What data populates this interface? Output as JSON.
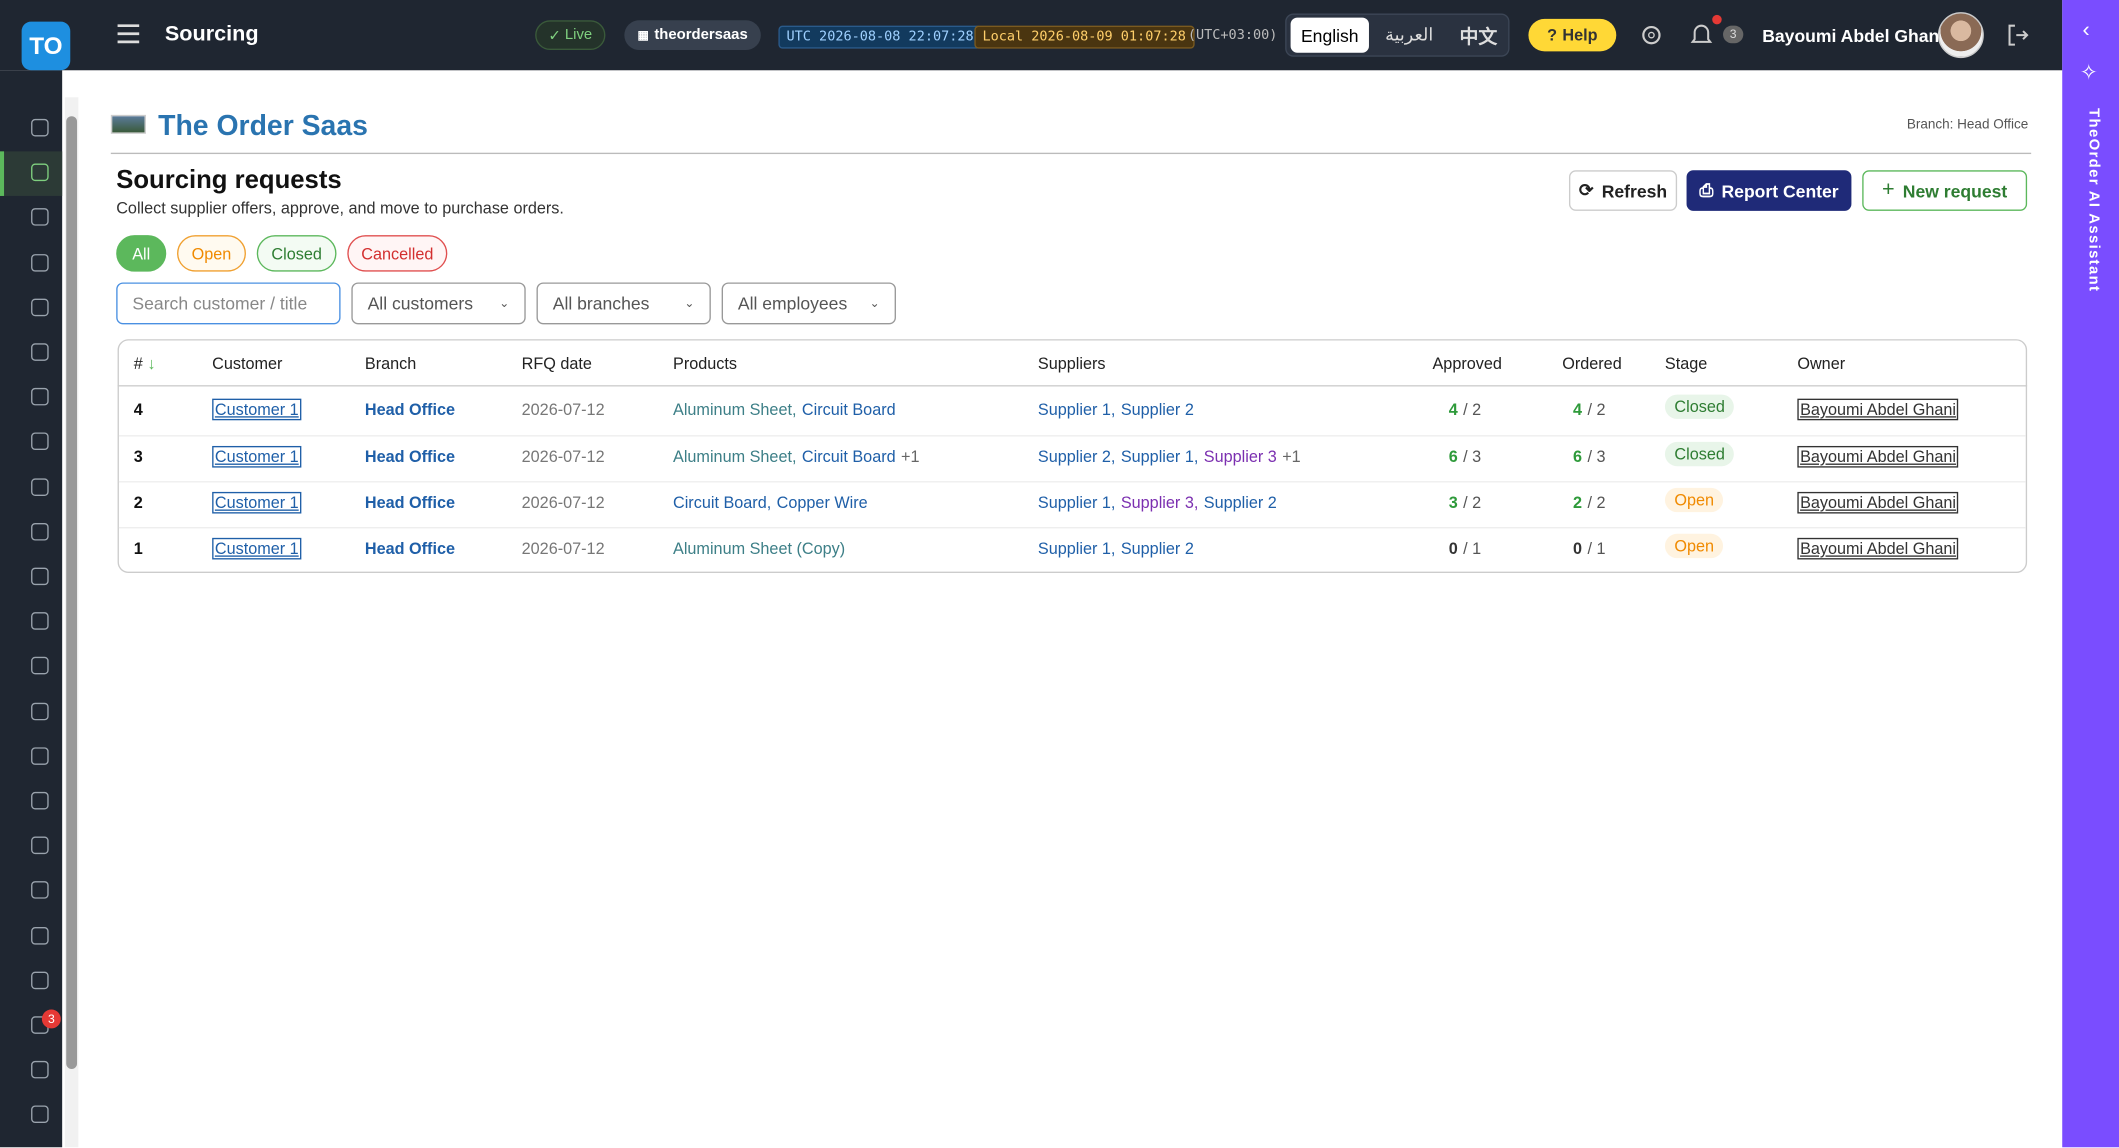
{
  "header": {
    "logo": "TO",
    "title": "Sourcing",
    "live": "Live",
    "tenant": "theordersaas",
    "utc": "UTC 2026-08-08 22:07:28",
    "local": "Local 2026-08-09 01:07:28",
    "offset": "(UTC+03:00)",
    "languages": [
      "English",
      "العربية",
      "中文"
    ],
    "help": "Help",
    "notifications": 3,
    "user": "Bayoumi Abdel Ghani"
  },
  "sidebar": {
    "badge": 3
  },
  "brand": {
    "title": "The Order Saas",
    "branch": "Branch: Head Office"
  },
  "page": {
    "title": "Sourcing requests",
    "subtitle": "Collect supplier offers, approve, and move to purchase orders.",
    "buttons": [
      "Refresh",
      "Report Center",
      "New request"
    ],
    "filters": [
      "All",
      "Open",
      "Closed",
      "Cancelled"
    ],
    "search_placeholder": "Search customer / title",
    "dropdowns": [
      "All customers",
      "All branches",
      "All employees"
    ]
  },
  "table": {
    "columns": [
      "#",
      "Customer",
      "Branch",
      "RFQ date",
      "Products",
      "Suppliers",
      "Approved",
      "Ordered",
      "Stage",
      "Owner"
    ],
    "rows": [
      {
        "id": 4,
        "customer": "Customer 1",
        "branch": "Head Office",
        "rfq_date": "2026-07-12",
        "products": [
          {
            "text": "Aluminum Sheet,",
            "color": "#3d7f87"
          },
          {
            "text": "Circuit Board",
            "color": "#1f5fa8"
          }
        ],
        "suppliers": [
          {
            "text": "Supplier 1,",
            "color": "#1f5fa8"
          },
          {
            "text": "Supplier 2",
            "color": "#1f5fa8"
          }
        ],
        "approved": [
          4,
          "/ 2"
        ],
        "ordered": [
          4,
          "/ 2"
        ],
        "stage": "Closed",
        "owner": "Bayoumi Abdel Ghani"
      },
      {
        "id": 3,
        "customer": "Customer 1",
        "branch": "Head Office",
        "rfq_date": "2026-07-12",
        "products": [
          {
            "text": "Aluminum Sheet,",
            "color": "#3d7f87"
          },
          {
            "text": "Circuit Board",
            "color": "#1f5fa8"
          }
        ],
        "products_more": "+1",
        "suppliers": [
          {
            "text": "Supplier 2,",
            "color": "#1f5fa8"
          },
          {
            "text": "Supplier 1,",
            "color": "#1f5fa8"
          },
          {
            "text": "Supplier 3",
            "color": "#7b2fb0"
          }
        ],
        "suppliers_more": "+1",
        "approved": [
          6,
          "/ 3"
        ],
        "ordered": [
          6,
          "/ 3"
        ],
        "stage": "Closed",
        "owner": "Bayoumi Abdel Ghani"
      },
      {
        "id": 2,
        "customer": "Customer 1",
        "branch": "Head Office",
        "rfq_date": "2026-07-12",
        "products": [
          {
            "text": "Circuit Board,",
            "color": "#1f5fa8"
          },
          {
            "text": "Copper Wire",
            "color": "#1f5fa8"
          }
        ],
        "suppliers": [
          {
            "text": "Supplier 1,",
            "color": "#1f5fa8"
          },
          {
            "text": "Supplier 3,",
            "color": "#7b2fb0"
          },
          {
            "text": "Supplier 2",
            "color": "#1f5fa8"
          }
        ],
        "approved": [
          3,
          "/ 2"
        ],
        "ordered": [
          2,
          "/ 2"
        ],
        "stage": "Open",
        "owner": "Bayoumi Abdel Ghani"
      },
      {
        "id": 1,
        "customer": "Customer 1",
        "branch": "Head Office",
        "rfq_date": "2026-07-12",
        "products": [
          {
            "text": "Aluminum Sheet (Copy)",
            "color": "#3d7f87"
          }
        ],
        "suppliers": [
          {
            "text": "Supplier 1,",
            "color": "#1f5fa8"
          },
          {
            "text": "Supplier 2",
            "color": "#1f5fa8"
          }
        ],
        "approved": [
          0,
          "/ 1"
        ],
        "ordered": [
          0,
          "/ 1"
        ],
        "stage": "Open",
        "owner": "Bayoumi Abdel Ghani"
      }
    ]
  },
  "assistant": {
    "label": "TheOrder AI Assistant"
  }
}
